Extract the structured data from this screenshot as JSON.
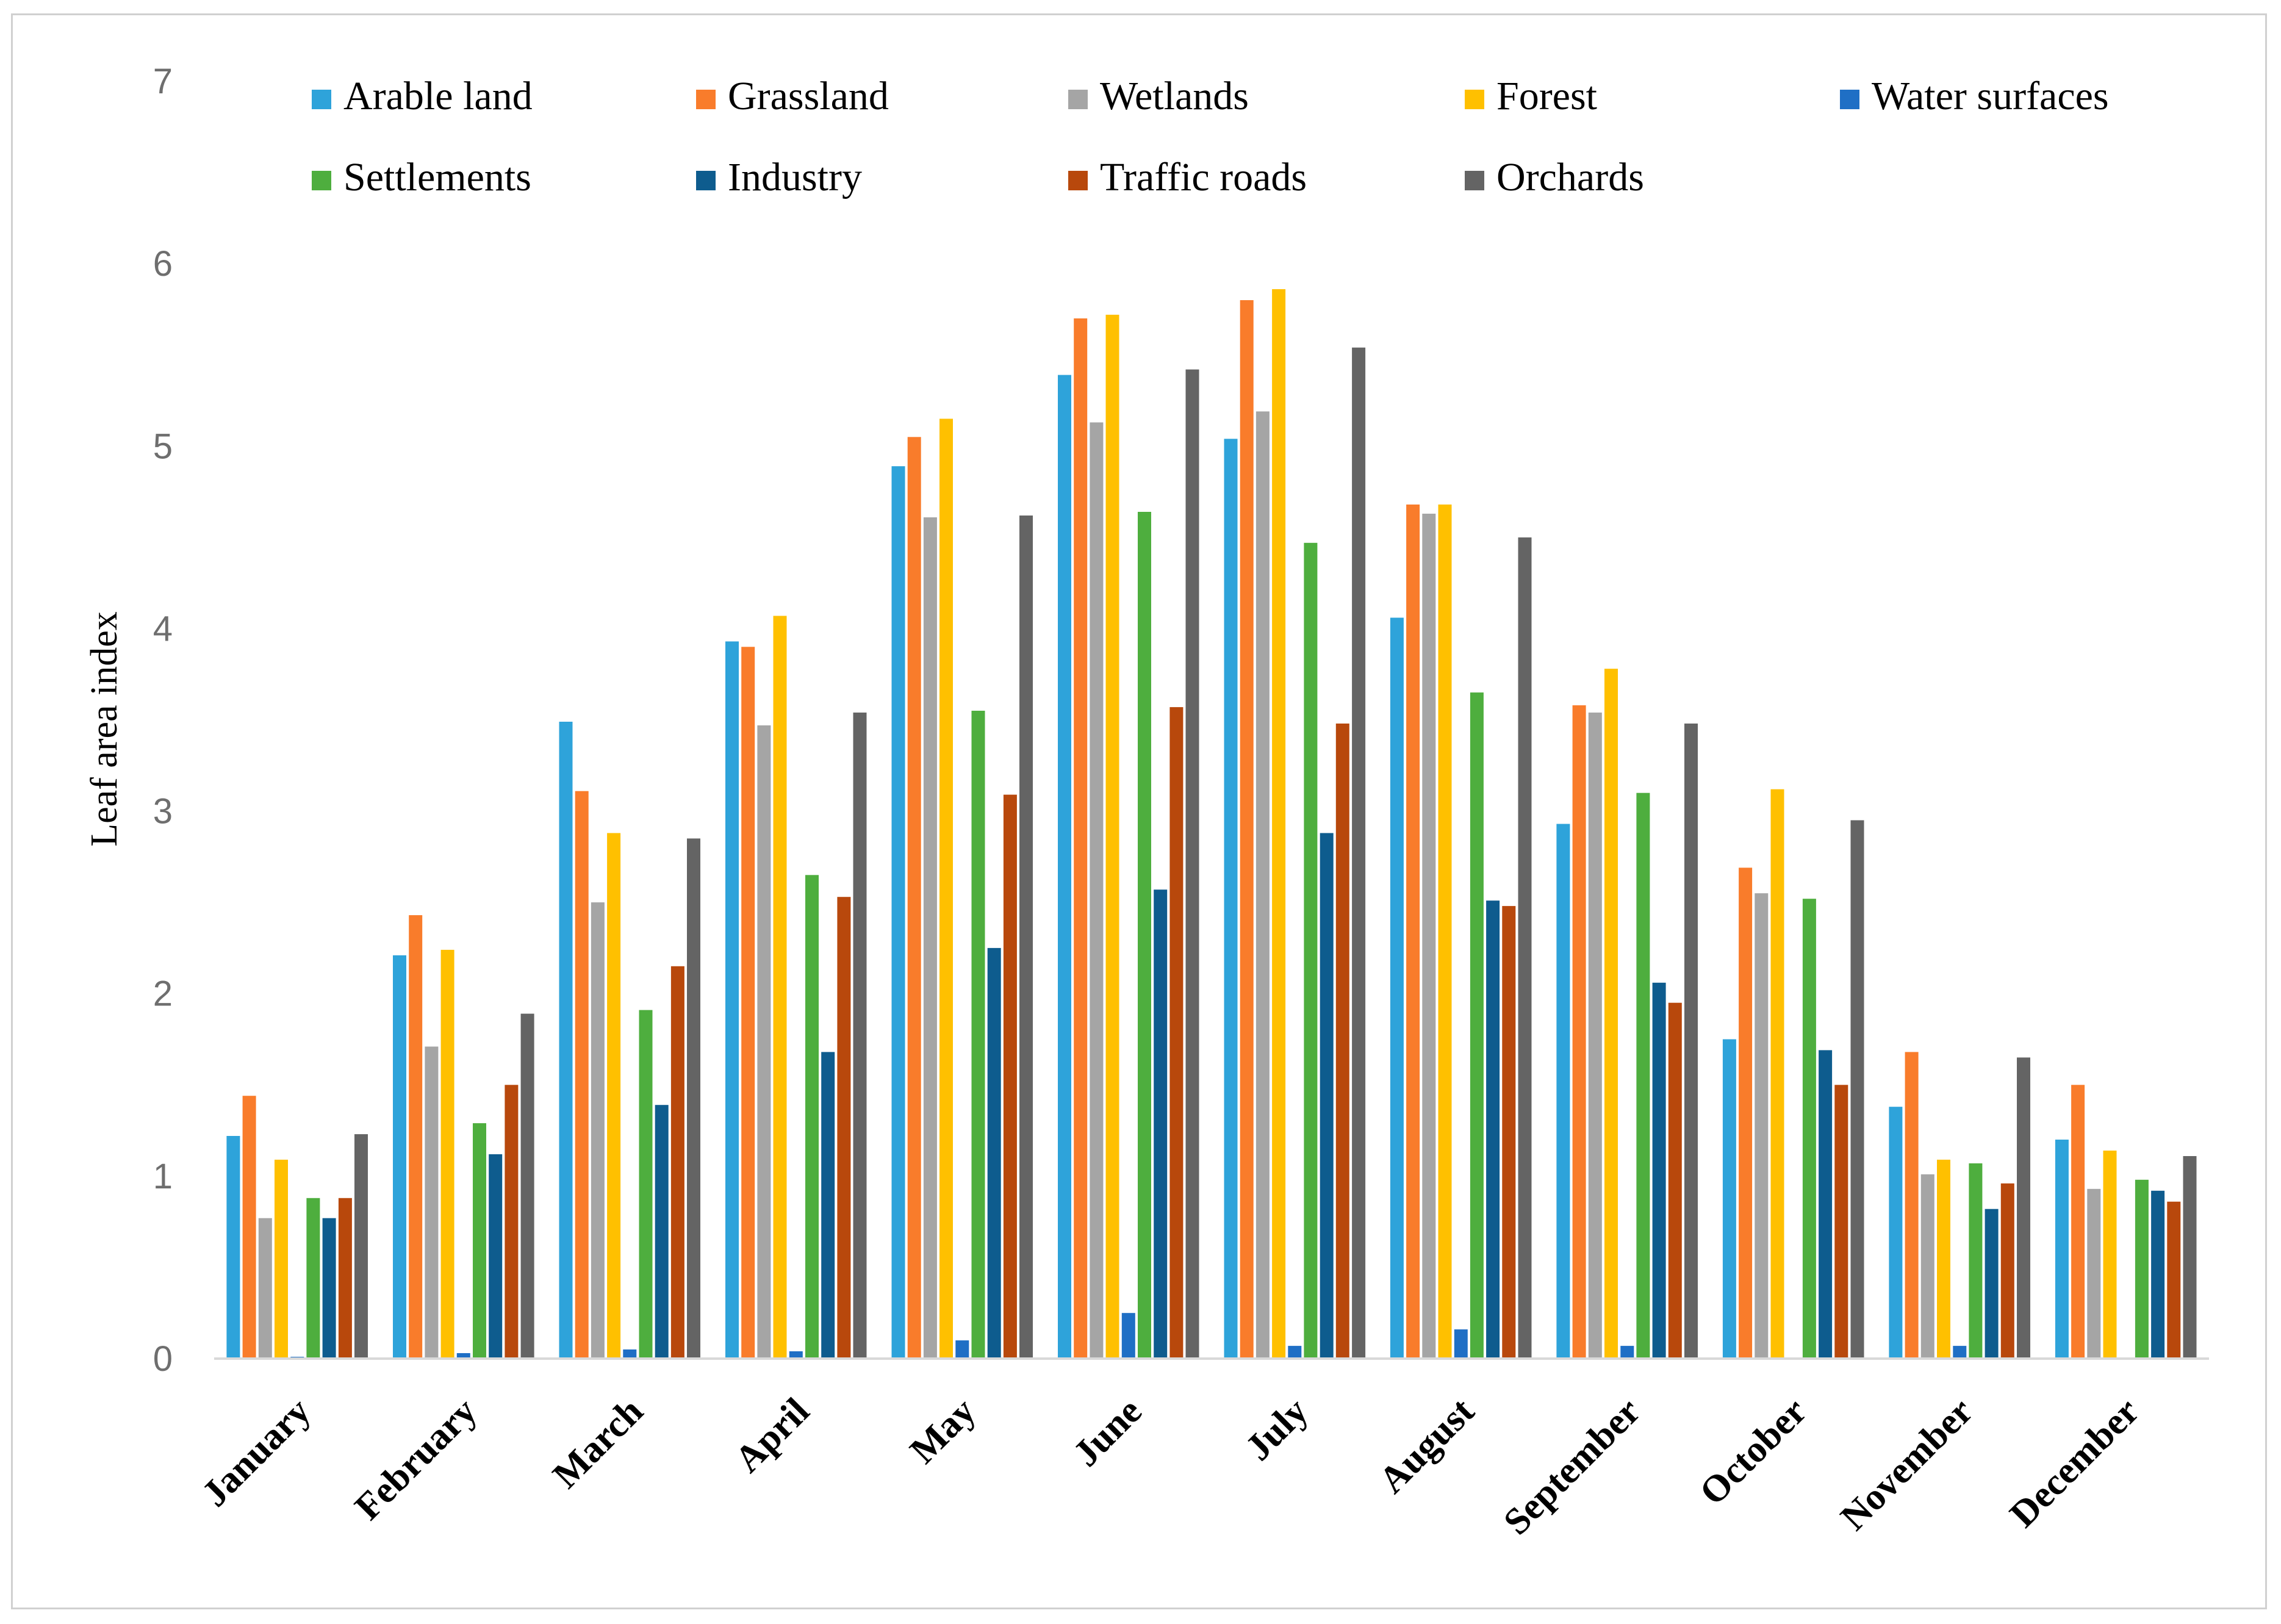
{
  "chart_data": {
    "type": "bar",
    "title": "",
    "xlabel": "",
    "ylabel": "Leaf area index",
    "ylim": [
      0,
      7
    ],
    "yticks": [
      "0",
      "1",
      "2",
      "3",
      "4",
      "5",
      "6",
      "7"
    ],
    "grid": false,
    "legend_position": "top",
    "categories": [
      "January",
      "February",
      "March",
      "April",
      "May",
      "June",
      "July",
      "August",
      "September",
      "October",
      "November",
      "December"
    ],
    "series": [
      {
        "name": "Arable land",
        "color": "#2EA3DA",
        "values": [
          1.22,
          2.21,
          3.49,
          3.93,
          4.89,
          5.39,
          5.04,
          4.06,
          2.93,
          1.75,
          1.38,
          1.2
        ]
      },
      {
        "name": "Grassland",
        "color": "#F97C2B",
        "values": [
          1.44,
          2.43,
          3.11,
          3.9,
          5.05,
          5.7,
          5.8,
          4.68,
          3.58,
          2.69,
          1.68,
          1.5
        ]
      },
      {
        "name": "Wetlands",
        "color": "#A5A5A5",
        "values": [
          0.77,
          1.71,
          2.5,
          3.47,
          4.61,
          5.13,
          5.19,
          4.63,
          3.54,
          2.55,
          1.01,
          0.93
        ]
      },
      {
        "name": "Forest",
        "color": "#FFC000",
        "values": [
          1.09,
          2.24,
          2.88,
          4.07,
          5.15,
          5.72,
          5.86,
          4.68,
          3.78,
          3.12,
          1.09,
          1.14
        ]
      },
      {
        "name": "Water surfaces",
        "color": "#1F6FC5",
        "values": [
          0.01,
          0.03,
          0.05,
          0.04,
          0.1,
          0.25,
          0.07,
          0.16,
          0.07,
          0.0,
          0.07,
          0.0
        ]
      },
      {
        "name": "Settlements",
        "color": "#4EAE3E",
        "values": [
          0.88,
          1.29,
          1.91,
          2.65,
          3.55,
          4.64,
          4.47,
          3.65,
          3.1,
          2.52,
          1.07,
          0.98
        ]
      },
      {
        "name": "Industry",
        "color": "#0E5C8E",
        "values": [
          0.77,
          1.12,
          1.39,
          1.68,
          2.25,
          2.57,
          2.88,
          2.51,
          2.06,
          1.69,
          0.82,
          0.92
        ]
      },
      {
        "name": "Traffic roads",
        "color": "#B8480C",
        "values": [
          0.88,
          1.5,
          2.15,
          2.53,
          3.09,
          3.57,
          3.48,
          2.48,
          1.95,
          1.5,
          0.96,
          0.86
        ]
      },
      {
        "name": "Orchards",
        "color": "#646464",
        "values": [
          1.23,
          1.89,
          2.85,
          3.54,
          4.62,
          5.42,
          5.54,
          4.5,
          3.48,
          2.95,
          1.65,
          1.11
        ]
      }
    ]
  }
}
